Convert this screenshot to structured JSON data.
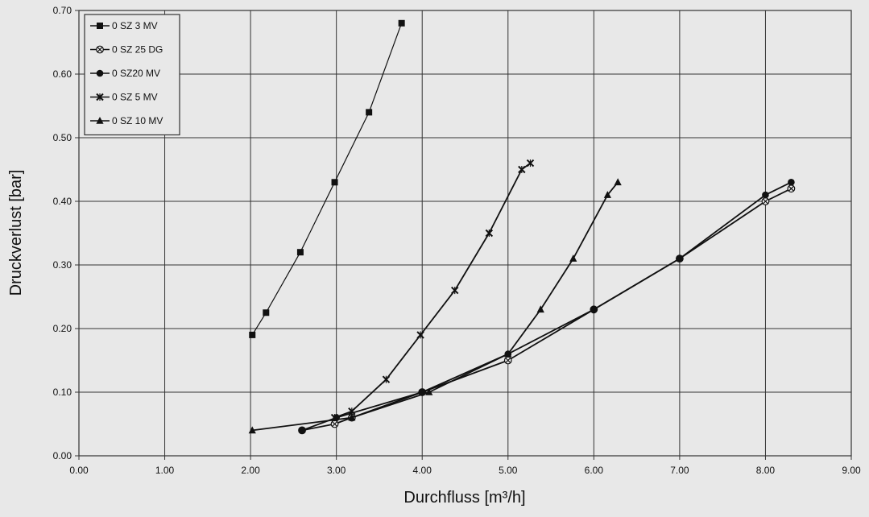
{
  "chart_data": {
    "type": "line",
    "title": "",
    "xlabel": "Durchfluss [m³/h]",
    "ylabel": "Druckverlust [bar]",
    "xlim": [
      0,
      9
    ],
    "ylim": [
      0,
      0.7
    ],
    "xticks": [
      "0.00",
      "1.00",
      "2.00",
      "3.00",
      "4.00",
      "5.00",
      "6.00",
      "7.00",
      "8.00",
      "9.00"
    ],
    "yticks": [
      "0.00",
      "0.10",
      "0.20",
      "0.30",
      "0.40",
      "0.50",
      "0.60",
      "0.70"
    ],
    "grid": true,
    "legend_position": "top-left",
    "series": [
      {
        "name": "0 SZ 3 MV",
        "marker": "square",
        "x": [
          2.02,
          2.18,
          2.58,
          2.98,
          3.38,
          3.76
        ],
        "y": [
          0.19,
          0.225,
          0.32,
          0.43,
          0.54,
          0.68
        ]
      },
      {
        "name": "0 SZ 25 DG",
        "marker": "circle-cross",
        "x": [
          2.6,
          2.98,
          3.18,
          4.0,
          5.0,
          6.0,
          7.0,
          8.0,
          8.3
        ],
        "y": [
          0.04,
          0.05,
          0.06,
          0.1,
          0.15,
          0.23,
          0.31,
          0.4,
          0.42
        ]
      },
      {
        "name": "0 SZ20 MV",
        "marker": "circle",
        "x": [
          2.6,
          3.0,
          4.0,
          5.0,
          6.0,
          7.0,
          8.0,
          8.3
        ],
        "y": [
          0.04,
          0.06,
          0.1,
          0.16,
          0.23,
          0.31,
          0.41,
          0.43
        ]
      },
      {
        "name": "0 SZ 5 MV",
        "marker": "x",
        "x": [
          2.98,
          3.18,
          3.58,
          3.98,
          4.38,
          4.78,
          5.16,
          5.26
        ],
        "y": [
          0.06,
          0.07,
          0.12,
          0.19,
          0.26,
          0.35,
          0.45,
          0.46
        ]
      },
      {
        "name": "0 SZ 10 MV",
        "marker": "triangle",
        "x": [
          2.02,
          3.18,
          4.08,
          5.0,
          5.38,
          5.76,
          6.16,
          6.28
        ],
        "y": [
          0.04,
          0.06,
          0.1,
          0.16,
          0.23,
          0.31,
          0.41,
          0.43
        ]
      }
    ]
  }
}
